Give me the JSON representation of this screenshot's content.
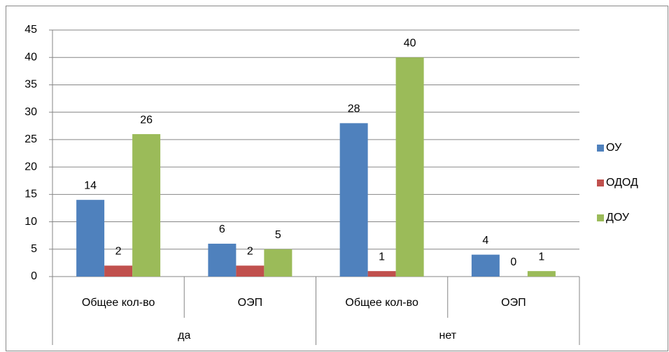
{
  "chart_data": {
    "type": "bar",
    "categories": [
      "Общее кол-во",
      "ОЭП",
      "Общее кол-во",
      "ОЭП"
    ],
    "category_groups": [
      "да",
      "нет"
    ],
    "series": [
      {
        "name": "ОУ",
        "color": "#4f81bd",
        "values": [
          14,
          6,
          28,
          4
        ]
      },
      {
        "name": "ОДОД",
        "color": "#c0504d",
        "values": [
          2,
          2,
          1,
          0
        ]
      },
      {
        "name": "ДОУ",
        "color": "#9bbb59",
        "values": [
          26,
          5,
          40,
          1
        ]
      }
    ],
    "ylim": [
      0,
      45
    ],
    "yticks": [
      0,
      5,
      10,
      15,
      20,
      25,
      30,
      35,
      40,
      45
    ],
    "grid": true,
    "legend": "right"
  }
}
